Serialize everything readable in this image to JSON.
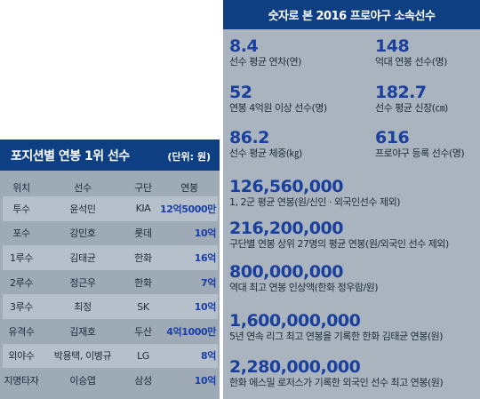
{
  "left": {
    "title": "포지션별 연봉 1위 선수",
    "unit": "(단위: 원)",
    "headers": [
      "위치",
      "선수",
      "구단",
      "연봉"
    ],
    "rows": [
      {
        "pos": "투수",
        "player": "윤석민",
        "team": "KIA",
        "salary": "12억5000만"
      },
      {
        "pos": "포수",
        "player": "강민호",
        "team": "롯데",
        "salary": "10억"
      },
      {
        "pos": "1루수",
        "player": "김태균",
        "team": "한화",
        "salary": "16억"
      },
      {
        "pos": "2루수",
        "player": "정근우",
        "team": "한화",
        "salary": "7억"
      },
      {
        "pos": "3루수",
        "player": "최정",
        "team": "SK",
        "salary": "10억"
      },
      {
        "pos": "유격수",
        "player": "김재호",
        "team": "두산",
        "salary": "4억1000만"
      },
      {
        "pos": "외야수",
        "player": "박용택, 이병규",
        "team": "LG",
        "salary": "8억"
      },
      {
        "pos": "지명타자",
        "player": "이승엽",
        "team": "삼성",
        "salary": "10억"
      }
    ]
  },
  "right": {
    "title": "숫자로 본 2016 프로야구 소속선수",
    "pairs": [
      {
        "num": "8.4",
        "label": "선수 평균 연차(연)",
        "num2": "148",
        "label2": "억대 연봉 선수(명)"
      },
      {
        "num": "52",
        "label": "연봉 4억원 이상 선수(명)",
        "num2": "182.7",
        "label2": "선수 평균 신장(㎝)"
      },
      {
        "num": "86.2",
        "label": "선수 평균 체중(㎏)",
        "num2": "616",
        "label2": "프로야구 등록 선수(명)"
      }
    ],
    "singles": [
      {
        "num": "126,560,000",
        "label": "1, 2군 평균 연봉(원/신인 · 외국인선수 제외)"
      },
      {
        "num": "216,200,000",
        "label": "구단별 연봉 상위 27명의 평균 연봉(원/외국인 선수 제외)"
      },
      {
        "num": "800,000,000",
        "label": "역대 최고 연봉 인상액(한화 정우람/원)"
      },
      {
        "num": "1,600,000,000",
        "label": "5년 연속 리그 최고 연봉을 기록한 한화 김태균 연봉(원)"
      },
      {
        "num": "2,280,000,000",
        "label": "한화 에스밀 로저스가 기록한 외국인 선수 최고 연봉(원)"
      }
    ]
  }
}
